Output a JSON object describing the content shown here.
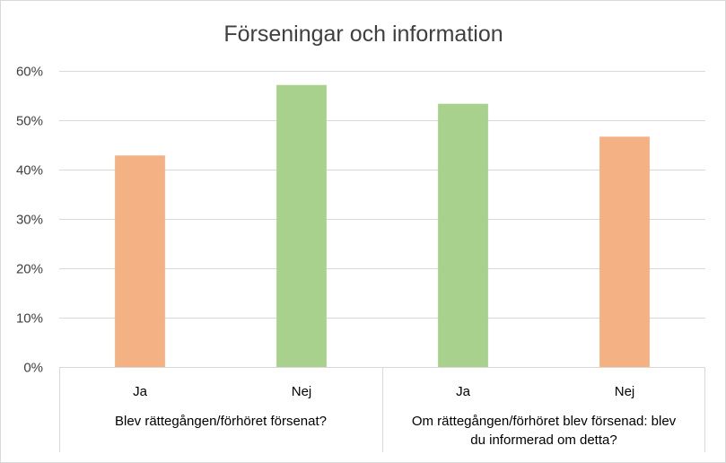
{
  "chart_data": {
    "type": "bar",
    "title": "Förseningar och information",
    "xlabel": "",
    "ylabel": "",
    "ylim": [
      0,
      0.6
    ],
    "y_ticks": [
      "0%",
      "10%",
      "20%",
      "30%",
      "40%",
      "50%",
      "60%"
    ],
    "grid": true,
    "legend": "none",
    "categories": [
      "Ja",
      "Nej",
      "Ja",
      "Nej"
    ],
    "values": [
      0.4286,
      0.5714,
      0.5333,
      0.4667
    ],
    "bar_colors": [
      "#f4b183",
      "#a9d18e",
      "#a9d18e",
      "#f4b183"
    ],
    "groups": [
      {
        "label_lines": [
          "Blev rättegången/förhöret försenat?"
        ],
        "categories": [
          0,
          1
        ]
      },
      {
        "label_lines": [
          "Om rättegången/förhöret blev försenad: blev",
          "du informerad om detta?"
        ],
        "categories": [
          2,
          3
        ]
      }
    ]
  }
}
